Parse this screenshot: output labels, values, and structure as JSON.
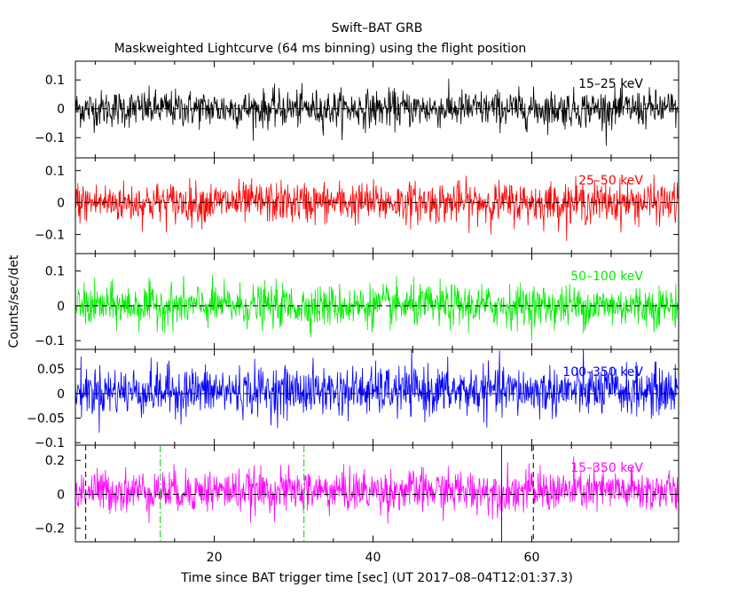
{
  "chart_data": {
    "type": "line",
    "title": "Swift–BAT GRB",
    "subtitle": "Maskweighted Lightcurve (64 ms binning) using the flight position",
    "xlabel": "Time since BAT trigger time [sec] (UT 2017–08–04T12:01:37.3)",
    "ylabel": "Counts/sec/det",
    "xlim": [
      2.5,
      78.5
    ],
    "x_ticks": [
      20,
      40,
      60
    ],
    "x_tick_labels": [
      "20",
      "40",
      "60"
    ],
    "grid": false,
    "binning_sec": 0.064,
    "panels": [
      {
        "band": "15–25 keV",
        "color": "#000000",
        "ylim": [
          -0.17,
          0.165
        ],
        "ticks": [
          -0.1,
          0,
          0.1
        ],
        "tick_labels": [
          "−0.1",
          "0",
          "0.1"
        ],
        "noise_sd": 0.032,
        "mean": 0.0
      },
      {
        "band": "25–50 keV",
        "color": "#ff0000",
        "ylim": [
          -0.16,
          0.14
        ],
        "ticks": [
          -0.1,
          0,
          0.1
        ],
        "tick_labels": [
          "−0.1",
          "0",
          "0.1"
        ],
        "noise_sd": 0.032,
        "mean": 0.0
      },
      {
        "band": "50–100 keV",
        "color": "#00ee00",
        "ylim": [
          -0.125,
          0.15
        ],
        "ticks": [
          -0.1,
          0,
          0.1
        ],
        "tick_labels": [
          "−0.1",
          "0",
          "0.1"
        ],
        "noise_sd": 0.03,
        "mean": 0.0
      },
      {
        "band": "100–350 keV",
        "color": "#0000ff",
        "ylim": [
          -0.105,
          0.09
        ],
        "ticks": [
          -0.1,
          -0.05,
          0,
          0.05
        ],
        "tick_labels": [
          "−0.1",
          "−0.05",
          "0",
          "0.05"
        ],
        "noise_sd": 0.025,
        "mean": 0.005
      },
      {
        "band": "15–350 keV",
        "color": "#ff00ff",
        "ylim": [
          -0.28,
          0.29
        ],
        "ticks": [
          -0.2,
          0,
          0.2
        ],
        "tick_labels": [
          "−0.2",
          "0",
          "0.2"
        ],
        "noise_sd": 0.062,
        "mean": 0.02
      }
    ],
    "markers": [
      {
        "x": 3.8,
        "color": "#000000",
        "style": "dashed"
      },
      {
        "x": 13.2,
        "color": "#00cc00",
        "style": "dashdot"
      },
      {
        "x": 31.3,
        "color": "#00cc00",
        "style": "dashdot"
      },
      {
        "x": 56.2,
        "color": "#0000ff",
        "style": "solid"
      },
      {
        "x": 60.2,
        "color": "#000000",
        "style": "dashed"
      }
    ]
  }
}
